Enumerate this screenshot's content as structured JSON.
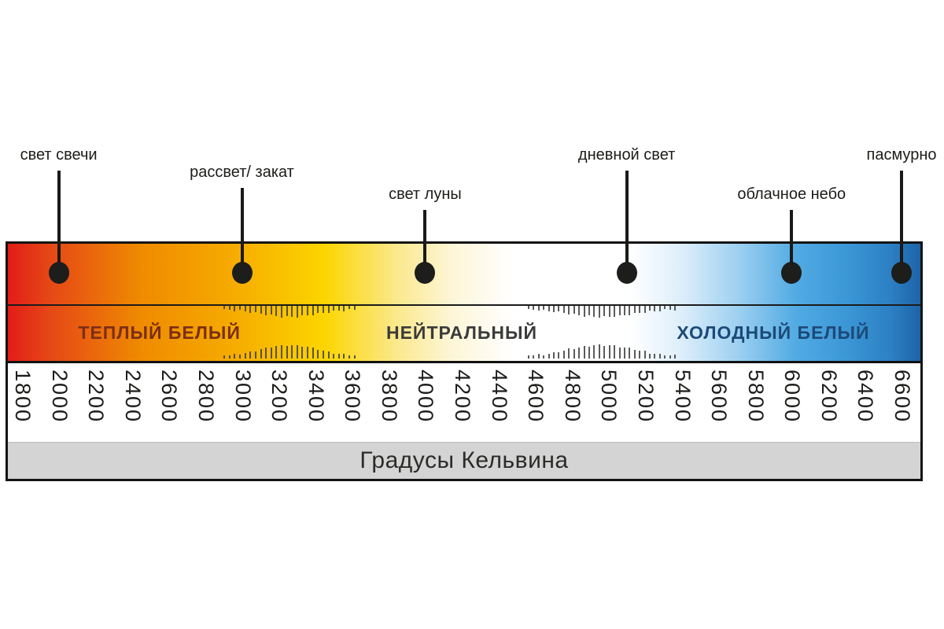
{
  "markers": [
    {
      "label": "свет свечи",
      "kelvin": 2000
    },
    {
      "label": "рассвет/ закат",
      "kelvin": 3000
    },
    {
      "label": "свет луны",
      "kelvin": 4000
    },
    {
      "label": "дневной свет",
      "kelvin": 5100
    },
    {
      "label": "облачное небо",
      "kelvin": 6000
    },
    {
      "label": "пасмурно",
      "kelvin": 6600
    }
  ],
  "zones": [
    {
      "label": "ТЕПЛЫЙ БЕЛЫЙ",
      "kelvin": 2550,
      "color": "#7b2f16"
    },
    {
      "label": "НЕЙТРАЛЬНЫЙ",
      "kelvin": 4200,
      "color": "#3b3b3a"
    },
    {
      "label": "ХОЛОДНЫЙ БЕЛЫЙ",
      "kelvin": 5900,
      "color": "#1c4a78"
    }
  ],
  "axis": {
    "min": 1800,
    "max": 6600,
    "step": 200,
    "ticks": [
      "1800",
      "2000",
      "2200",
      "2400",
      "2600",
      "2800",
      "3000",
      "3200",
      "3400",
      "3600",
      "3800",
      "4000",
      "4200",
      "4400",
      "4600",
      "4800",
      "5000",
      "5200",
      "5400",
      "5600",
      "5800",
      "6000",
      "6200",
      "6400",
      "6600"
    ]
  },
  "footer": {
    "label": "Градусы Кельвина",
    "background": "#d4d4d4"
  },
  "hatch_bands": [
    {
      "from": 2900,
      "to": 3610
    },
    {
      "from": 4560,
      "to": 5360
    }
  ],
  "gradient_stops": [
    {
      "kelvin": 1720,
      "color": "#e21d17"
    },
    {
      "kelvin": 1950,
      "color": "#e64717"
    },
    {
      "kelvin": 2450,
      "color": "#ef8b00"
    },
    {
      "kelvin": 2950,
      "color": "#f6ab00"
    },
    {
      "kelvin": 3450,
      "color": "#fcd500"
    },
    {
      "kelvin": 3850,
      "color": "#fbe98e"
    },
    {
      "kelvin": 4150,
      "color": "#fdf6d8"
    },
    {
      "kelvin": 4480,
      "color": "#ffffff"
    },
    {
      "kelvin": 5120,
      "color": "#ffffff"
    },
    {
      "kelvin": 5400,
      "color": "#ddeefa"
    },
    {
      "kelvin": 5700,
      "color": "#9fd1f1"
    },
    {
      "kelvin": 6020,
      "color": "#52abe3"
    },
    {
      "kelvin": 6320,
      "color": "#3a95d5"
    },
    {
      "kelvin": 6540,
      "color": "#2c80c3"
    },
    {
      "kelvin": 6720,
      "color": "#1d64a9"
    }
  ]
}
